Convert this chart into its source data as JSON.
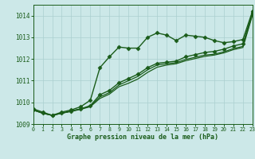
{
  "title": "Graphe pression niveau de la mer (hPa)",
  "bg_color": "#cce8e8",
  "grid_color": "#aacfcf",
  "line_color": "#1a5c1a",
  "xlim": [
    0,
    23
  ],
  "ylim": [
    1009,
    1014.5
  ],
  "yticks": [
    1009,
    1010,
    1011,
    1012,
    1013,
    1014
  ],
  "xticks": [
    0,
    1,
    2,
    3,
    4,
    5,
    6,
    7,
    8,
    9,
    10,
    11,
    12,
    13,
    14,
    15,
    16,
    17,
    18,
    19,
    20,
    21,
    22,
    23
  ],
  "series": [
    {
      "x": [
        0,
        1,
        2,
        3,
        4,
        5,
        6,
        7,
        8,
        9,
        10,
        11,
        12,
        13,
        14,
        15,
        16,
        17,
        18,
        19,
        20,
        21,
        22,
        23
      ],
      "y": [
        1009.7,
        1009.55,
        1009.4,
        1009.55,
        1009.65,
        1009.8,
        1010.1,
        1011.6,
        1012.1,
        1012.55,
        1012.5,
        1012.5,
        1013.0,
        1013.2,
        1013.1,
        1012.85,
        1013.1,
        1013.05,
        1013.0,
        1012.85,
        1012.75,
        1012.8,
        1012.9,
        1014.2
      ],
      "marker": "D",
      "markersize": 2.5,
      "linewidth": 1.0
    },
    {
      "x": [
        0,
        1,
        2,
        3,
        4,
        5,
        6,
        7,
        8,
        9,
        10,
        11,
        12,
        13,
        14,
        15,
        16,
        17,
        18,
        19,
        20,
        21,
        22,
        23
      ],
      "y": [
        1009.65,
        1009.5,
        1009.4,
        1009.5,
        1009.6,
        1009.7,
        1009.85,
        1010.35,
        1010.55,
        1010.9,
        1011.1,
        1011.3,
        1011.6,
        1011.8,
        1011.85,
        1011.9,
        1012.1,
        1012.2,
        1012.3,
        1012.35,
        1012.45,
        1012.6,
        1012.7,
        1014.15
      ],
      "marker": "D",
      "markersize": 2.5,
      "linewidth": 1.0
    },
    {
      "x": [
        0,
        1,
        2,
        3,
        4,
        5,
        6,
        7,
        8,
        9,
        10,
        11,
        12,
        13,
        14,
        15,
        16,
        17,
        18,
        19,
        20,
        21,
        22,
        23
      ],
      "y": [
        1009.65,
        1009.5,
        1009.4,
        1009.5,
        1009.6,
        1009.7,
        1009.82,
        1010.25,
        1010.45,
        1010.8,
        1011.0,
        1011.2,
        1011.5,
        1011.72,
        1011.78,
        1011.83,
        1011.98,
        1012.08,
        1012.18,
        1012.22,
        1012.33,
        1012.48,
        1012.58,
        1014.08
      ],
      "marker": null,
      "markersize": 0,
      "linewidth": 0.9
    },
    {
      "x": [
        0,
        1,
        2,
        3,
        4,
        5,
        6,
        7,
        8,
        9,
        10,
        11,
        12,
        13,
        14,
        15,
        16,
        17,
        18,
        19,
        20,
        21,
        22,
        23
      ],
      "y": [
        1009.65,
        1009.5,
        1009.4,
        1009.5,
        1009.58,
        1009.68,
        1009.8,
        1010.18,
        1010.38,
        1010.72,
        1010.88,
        1011.08,
        1011.38,
        1011.62,
        1011.72,
        1011.78,
        1011.92,
        1012.02,
        1012.12,
        1012.18,
        1012.28,
        1012.43,
        1012.53,
        1014.02
      ],
      "marker": null,
      "markersize": 0,
      "linewidth": 0.9
    }
  ]
}
